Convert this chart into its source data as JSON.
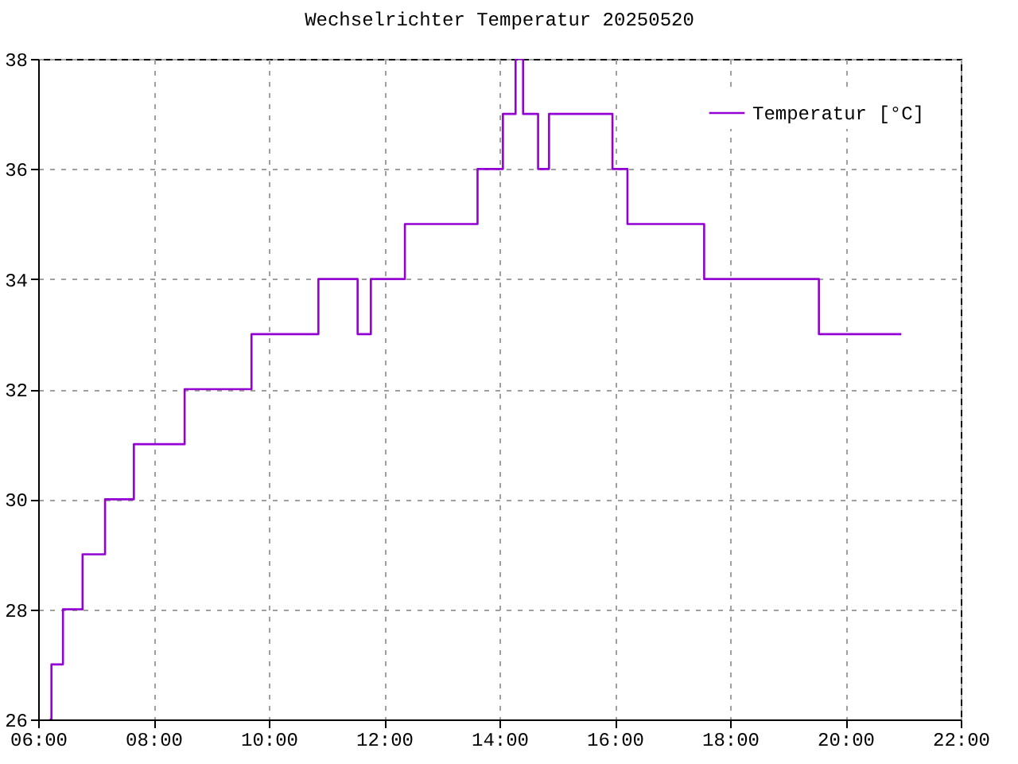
{
  "chart_data": {
    "type": "step",
    "title": "Wechselrichter Temperatur 20250520",
    "x": [
      6.2,
      6.23,
      6.43,
      6.77,
      7.16,
      7.66,
      8.54,
      9.7,
      10.86,
      11.54,
      11.77,
      12.36,
      13.62,
      14.06,
      14.28,
      14.41,
      14.67,
      14.86,
      15.96,
      16.22,
      17.55,
      19.54,
      20.97
    ],
    "series": [
      {
        "name": "Temperatur [°C]",
        "color": "#9400d3",
        "values": [
          26,
          27,
          28,
          29,
          30,
          31,
          32,
          33,
          34,
          33,
          34,
          35,
          36,
          37,
          38,
          37,
          36,
          37,
          36,
          35,
          34,
          33,
          33
        ]
      }
    ],
    "xlim": [
      6,
      22
    ],
    "xticks": [
      {
        "value": 6,
        "label": "06:00"
      },
      {
        "value": 8,
        "label": "08:00"
      },
      {
        "value": 10,
        "label": "10:00"
      },
      {
        "value": 12,
        "label": "12:00"
      },
      {
        "value": 14,
        "label": "14:00"
      },
      {
        "value": 16,
        "label": "16:00"
      },
      {
        "value": 18,
        "label": "18:00"
      },
      {
        "value": 20,
        "label": "20:00"
      },
      {
        "value": 22,
        "label": "22:00"
      }
    ],
    "ylim": [
      26,
      38
    ],
    "yticks": [
      26,
      28,
      30,
      32,
      34,
      36,
      38
    ],
    "grid": true,
    "legend": "top right",
    "line_style": "solid",
    "marker": "none"
  }
}
